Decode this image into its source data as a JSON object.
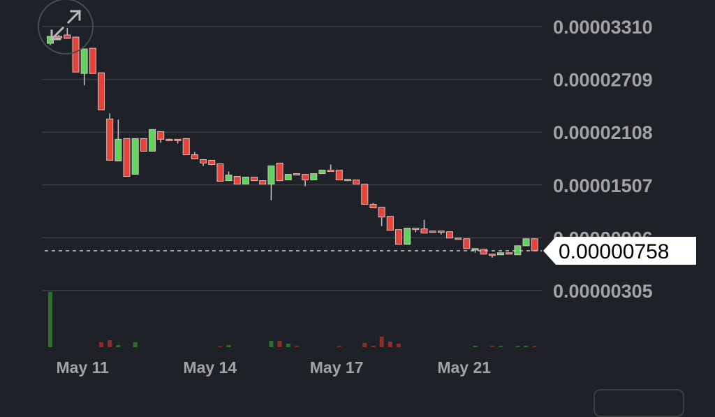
{
  "chart_data": {
    "type": "candlestick",
    "price_scale": 1e-08,
    "y_ticks": [
      "0.00003310",
      "0.00002709",
      "0.00002108",
      "0.00001507",
      "0.00000906",
      "0.00000305"
    ],
    "ylim": [
      3.05e-06,
      3.31e-05
    ],
    "x_ticks": [
      {
        "label": "May 11",
        "index": 3.8
      },
      {
        "label": "May 14",
        "index": 18.8
      },
      {
        "label": "May 17",
        "index": 33.7
      },
      {
        "label": "May 21",
        "index": 48.7
      }
    ],
    "last_price": "0.00000758",
    "last_price_value": 758,
    "grid": true,
    "colors": {
      "up": "#5fd35c",
      "down": "#e5443a",
      "volume_up": "#2f6e2c",
      "volume_down": "#8b2d2b",
      "grid": "#3b3d43",
      "background": "#1f2128"
    },
    "ohlc": [
      [
        3119,
        3198,
        3100,
        3198
      ],
      [
        3198,
        3214,
        3190,
        3190
      ],
      [
        3214,
        3294,
        3175,
        3175
      ],
      [
        3190,
        3190,
        2792,
        2792
      ],
      [
        2776,
        3055,
        2641,
        3055
      ],
      [
        3063,
        3063,
        2776,
        2776
      ],
      [
        2784,
        2784,
        2362,
        2362
      ],
      [
        2258,
        2322,
        1788,
        1788
      ],
      [
        1780,
        2250,
        1780,
        2027
      ],
      [
        2035,
        2035,
        1604,
        1604
      ],
      [
        1628,
        2035,
        1628,
        2035
      ],
      [
        2035,
        2035,
        1891,
        1891
      ],
      [
        1891,
        2138,
        1891,
        2138
      ],
      [
        2115,
        2115,
        1987,
        2027
      ],
      [
        2027,
        2035,
        2019,
        2019
      ],
      [
        2027,
        2027,
        1979,
        2019
      ],
      [
        2035,
        2035,
        1851,
        1851
      ],
      [
        1851,
        1883,
        1804,
        1804
      ],
      [
        1796,
        1796,
        1724,
        1756
      ],
      [
        1788,
        1788,
        1732,
        1740
      ],
      [
        1748,
        1748,
        1548,
        1548
      ],
      [
        1556,
        1660,
        1556,
        1620
      ],
      [
        1604,
        1604,
        1517,
        1517
      ],
      [
        1517,
        1596,
        1517,
        1596
      ],
      [
        1596,
        1596,
        1556,
        1556
      ],
      [
        1556,
        1556,
        1517,
        1517
      ],
      [
        1517,
        1724,
        1333,
        1724
      ],
      [
        1756,
        1756,
        1556,
        1556
      ],
      [
        1564,
        1628,
        1564,
        1628
      ],
      [
        1636,
        1636,
        1620,
        1620
      ],
      [
        1628,
        1628,
        1493,
        1564
      ],
      [
        1564,
        1636,
        1564,
        1636
      ],
      [
        1636,
        1676,
        1636,
        1676
      ],
      [
        1676,
        1740,
        1668,
        1668
      ],
      [
        1676,
        1676,
        1564,
        1564
      ],
      [
        1572,
        1572,
        1556,
        1556
      ],
      [
        1564,
        1564,
        1517,
        1517
      ],
      [
        1517,
        1517,
        1286,
        1286
      ],
      [
        1286,
        1302,
        1246,
        1246
      ],
      [
        1254,
        1254,
        1039,
        1142
      ],
      [
        1150,
        1150,
        991,
        991
      ],
      [
        999,
        999,
        831,
        831
      ],
      [
        831,
        1015,
        831,
        1015
      ],
      [
        1015,
        1015,
        967,
        999
      ],
      [
        1007,
        1110,
        959,
        959
      ],
      [
        983,
        983,
        967,
        967
      ],
      [
        983,
        983,
        943,
        975
      ],
      [
        975,
        975,
        903,
        903
      ],
      [
        903,
        903,
        895,
        895
      ],
      [
        895,
        895,
        783,
        783
      ],
      [
        783,
        783,
        736,
        783
      ],
      [
        775,
        775,
        720,
        720
      ],
      [
        720,
        720,
        680,
        704
      ],
      [
        712,
        736,
        712,
        736
      ],
      [
        736,
        736,
        720,
        720
      ],
      [
        712,
        815,
        712,
        815
      ],
      [
        815,
        895,
        815,
        895
      ],
      [
        895,
        895,
        758,
        758
      ]
    ],
    "volume": [
      {
        "i": 0,
        "v": 79,
        "up": true
      },
      {
        "i": 6,
        "v": 7,
        "up": false
      },
      {
        "i": 7,
        "v": 10,
        "up": false
      },
      {
        "i": 8,
        "v": 3,
        "up": true
      },
      {
        "i": 10,
        "v": 7,
        "up": true
      },
      {
        "i": 20,
        "v": 1,
        "up": false
      },
      {
        "i": 21,
        "v": 3,
        "up": true
      },
      {
        "i": 26,
        "v": 9,
        "up": true
      },
      {
        "i": 27,
        "v": 9,
        "up": false
      },
      {
        "i": 28,
        "v": 5,
        "up": true
      },
      {
        "i": 29,
        "v": 1,
        "up": false
      },
      {
        "i": 34,
        "v": 1,
        "up": false
      },
      {
        "i": 37,
        "v": 6,
        "up": false
      },
      {
        "i": 38,
        "v": 2,
        "up": false
      },
      {
        "i": 39,
        "v": 15,
        "up": false
      },
      {
        "i": 40,
        "v": 8,
        "up": false
      },
      {
        "i": 41,
        "v": 5,
        "up": false
      },
      {
        "i": 50,
        "v": 2,
        "up": true
      },
      {
        "i": 52,
        "v": 1,
        "up": false
      },
      {
        "i": 53,
        "v": 1,
        "up": true
      },
      {
        "i": 55,
        "v": 1,
        "up": true
      },
      {
        "i": 56,
        "v": 2,
        "up": true
      },
      {
        "i": 57,
        "v": 1,
        "up": false
      }
    ]
  },
  "icons": {
    "expand": "expand-arrows-icon"
  }
}
